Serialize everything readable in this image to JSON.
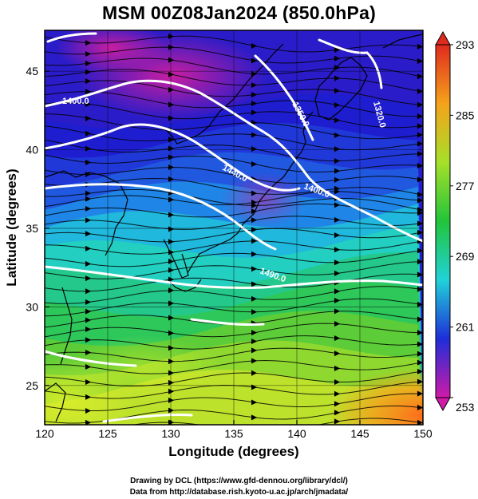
{
  "title": "MSM 00Z08Jan2024 (850.0hPa)",
  "xlabel": "Longitude (degrees)",
  "ylabel": "Latitude  (degrees)",
  "credits": [
    "Drawing by DCL (https://www.gfd-dennou.org/library/dcl/)",
    "Data from http://database.rish.kyoto-u.ac.jp/arch/jmadata/"
  ],
  "map": {
    "lon_range": [
      120,
      150
    ],
    "lat_range": [
      22.5,
      47.6
    ],
    "lon_ticks": [
      120,
      125,
      130,
      135,
      140,
      145,
      150
    ],
    "lat_ticks": [
      25,
      30,
      35,
      40,
      45
    ],
    "grid": true
  },
  "colorbar": {
    "min": 253,
    "max": 293,
    "tick_labels": [
      293,
      285,
      277,
      269,
      261,
      253
    ],
    "colors": [
      "#d01aa8",
      "#1e2ed8",
      "#21d2d8",
      "#22c43a",
      "#a6e02a",
      "#f5a21c",
      "#e02a1e"
    ]
  },
  "contours": {
    "labels": [
      "1400.0",
      "1350.0",
      "1320.0",
      "1440.0",
      "1400.0",
      "1490.0"
    ]
  },
  "chart_data": {
    "type": "heatmap",
    "variable": "temperature with streamlines and geopotential height contours",
    "level_hPa": 850.0,
    "time": "00Z08Jan2024",
    "colorbar_range": [
      253,
      293
    ]
  }
}
